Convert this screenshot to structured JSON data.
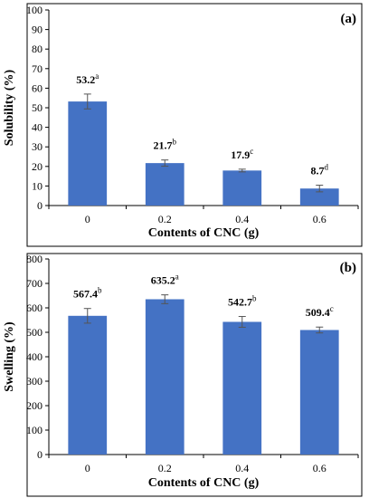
{
  "chart_data": [
    {
      "type": "bar",
      "panel_label": "(a)",
      "xlabel": "Contents of CNC (g)",
      "ylabel": "Solubility (%)",
      "categories": [
        "0",
        "0.2",
        "0.4",
        "0.6"
      ],
      "values": [
        53.2,
        21.7,
        17.9,
        8.7
      ],
      "errors": [
        3.8,
        1.6,
        0.7,
        1.7
      ],
      "labels": [
        "53.2",
        "21.7",
        "17.9",
        "8.7"
      ],
      "letters": [
        "a",
        "b",
        "c",
        "d"
      ],
      "ylim": [
        0,
        100
      ],
      "ytick_step": 10,
      "bar_color": "#4472C4",
      "grid": false
    },
    {
      "type": "bar",
      "panel_label": "(b)",
      "xlabel": "Contents of CNC (g)",
      "ylabel": "Swelling (%)",
      "categories": [
        "0",
        "0.2",
        "0.4",
        "0.6"
      ],
      "values": [
        567.4,
        635.2,
        542.7,
        509.4
      ],
      "errors": [
        30,
        18,
        22,
        12
      ],
      "labels": [
        "567.4",
        "635.2",
        "542.7",
        "509.4"
      ],
      "letters": [
        "b",
        "a",
        "b",
        "c"
      ],
      "ylim": [
        0,
        800
      ],
      "ytick_step": 100,
      "bar_color": "#4472C4",
      "grid": false
    }
  ]
}
